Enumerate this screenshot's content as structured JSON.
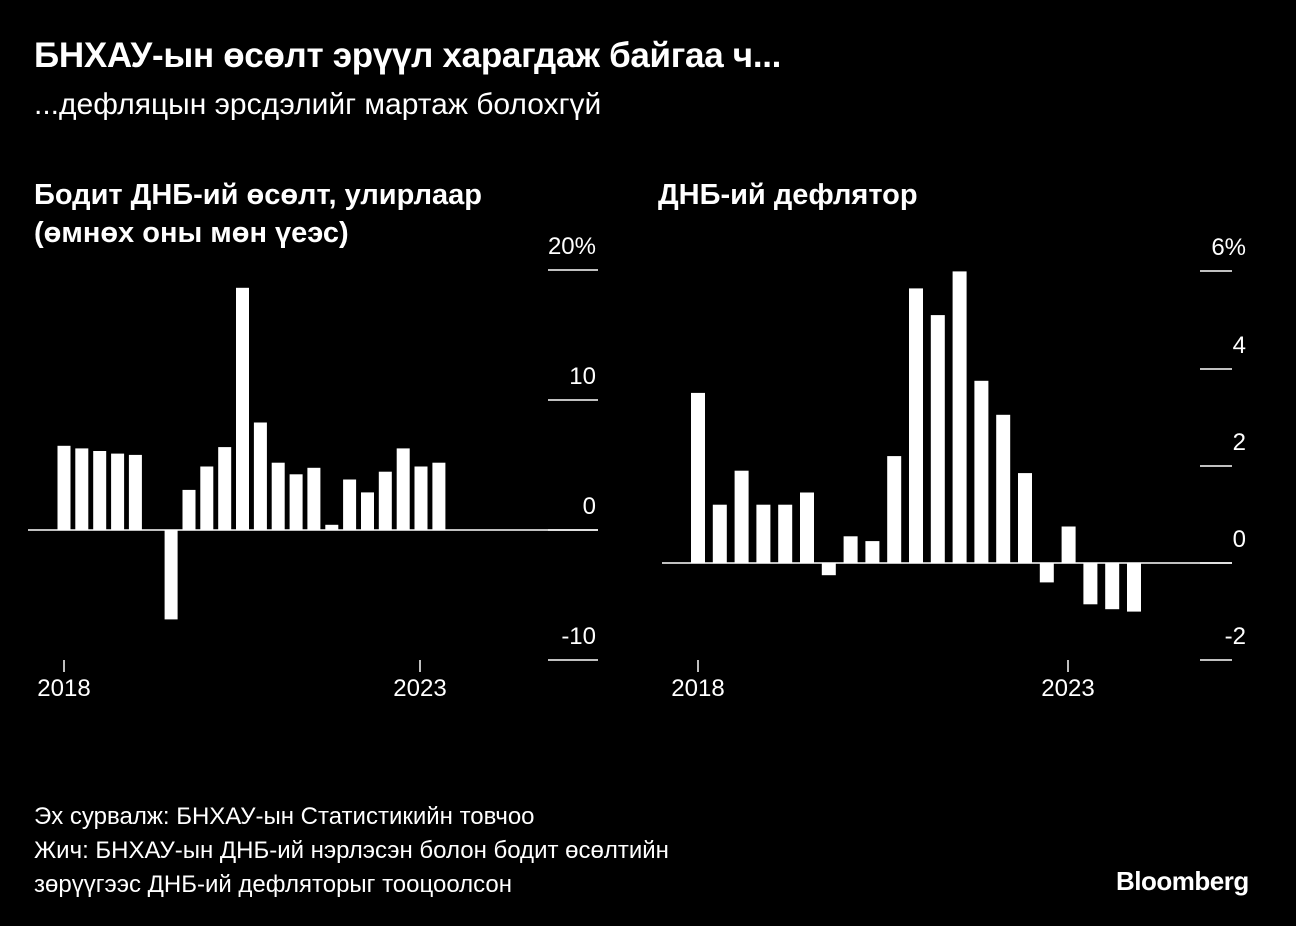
{
  "header": {
    "title": "БНХАУ-ын өсөлт эрүүл харагдаж байгаа ч...",
    "subtitle": "...дефляцын эрсдэлийг мартаж болохгүй"
  },
  "chart_data": [
    {
      "type": "bar",
      "title": "Бодит ДНБ-ий өсөлт, улирлаар (өмнөх оны мөн үеэс)",
      "x_start": "2018-Q1",
      "x_ticks": [
        "2018",
        "2023"
      ],
      "y_ticks": [
        "20%",
        "10",
        "0",
        "-10"
      ],
      "ylim": [
        -10,
        20
      ],
      "values": [
        6.5,
        6.3,
        6.1,
        5.9,
        5.8,
        null,
        -6.9,
        3.1,
        4.9,
        6.4,
        18.7,
        8.3,
        5.2,
        4.3,
        4.8,
        0.4,
        3.9,
        2.9,
        4.5,
        6.3,
        4.9,
        5.2
      ],
      "color": "#ffffff"
    },
    {
      "type": "bar",
      "title": "ДНБ-ий дефлятор",
      "x_start": "2018-Q1",
      "x_ticks": [
        "2018",
        "2023"
      ],
      "y_ticks": [
        "6%",
        "4",
        "2",
        "0",
        "-2"
      ],
      "ylim": [
        -2,
        6
      ],
      "values": [
        3.5,
        1.2,
        1.9,
        1.2,
        1.2,
        1.45,
        -0.25,
        0.55,
        0.45,
        2.2,
        5.65,
        5.1,
        6.0,
        3.75,
        3.05,
        1.85,
        -0.4,
        0.75,
        -0.85,
        -0.95,
        -1.0
      ],
      "color": "#ffffff"
    }
  ],
  "footer": {
    "source": "Эх сурвалж: БНХАУ-ын Статистикийн товчоо",
    "note_line1": "Жич: БНХАУ-ын ДНБ-ий нэрлэсэн болон бодит өсөлтийн",
    "note_line2": "зөрүүгээс ДНБ-ий дефляторыг тооцоолсон",
    "brand": "Bloomberg"
  }
}
